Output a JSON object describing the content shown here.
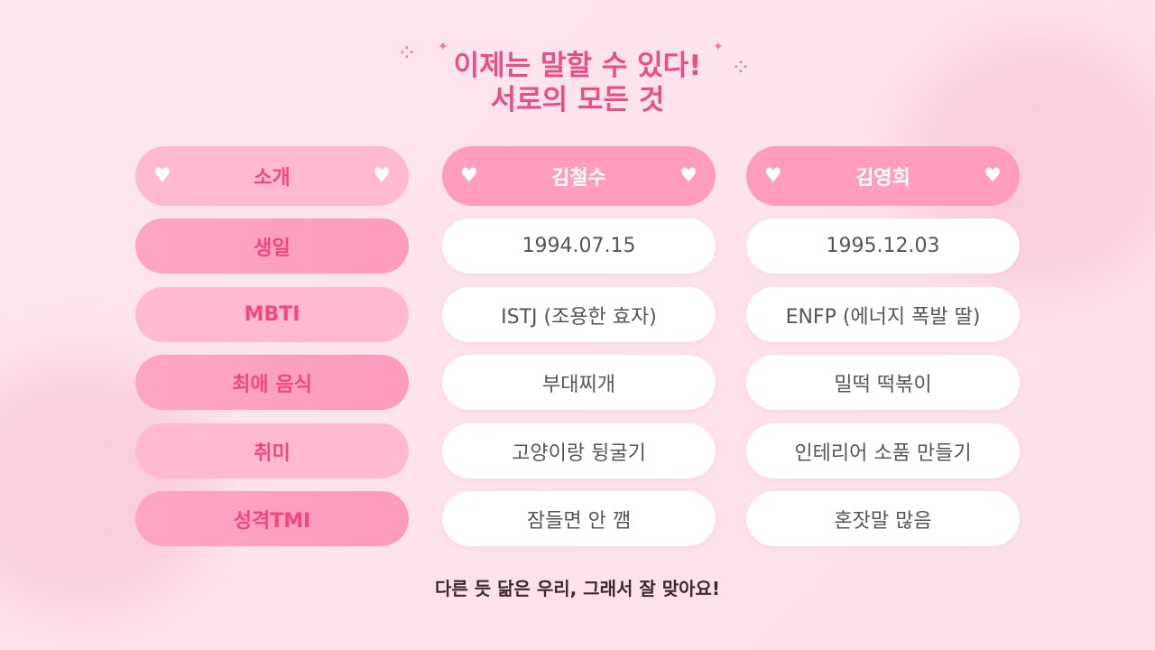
{
  "title": {
    "line1": "이제는 말할 수 있다!",
    "line2": "서로의 모든 것"
  },
  "header": {
    "label": "소개",
    "person1": "김철수",
    "person2": "김영희"
  },
  "rows": [
    {
      "label": "생일",
      "p1": "1994.07.15",
      "p2": "1995.12.03"
    },
    {
      "label": "MBTI",
      "p1": "ISTJ (조용한 효자)",
      "p2": "ENFP (에너지 폭발 딸)"
    },
    {
      "label": "최애 음식",
      "p1": "부대찌개",
      "p2": "밀떡 떡볶이"
    },
    {
      "label": "취미",
      "p1": "고양이랑 뒹굴기",
      "p2": "인테리어 소품 만들기"
    },
    {
      "label": "성격TMI",
      "p1": "잠들면 안 깸",
      "p2": "혼잣말 많음"
    }
  ],
  "footer": "다른 듯 닮은 우리, 그래서 잘 맞아요!",
  "colors": {
    "accent": "#e84f86",
    "header_name": "#ff9dbd",
    "label_dark": "#fd9fc0",
    "label_light": "#ffbad2"
  }
}
